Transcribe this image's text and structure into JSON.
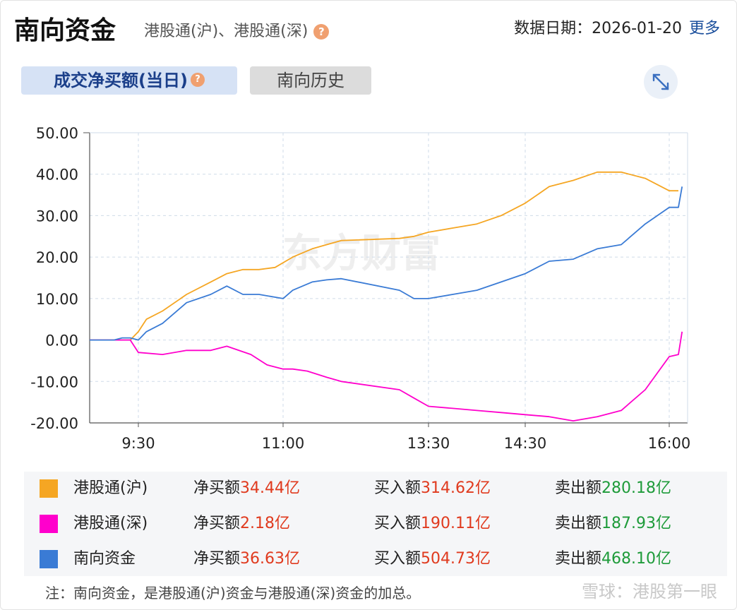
{
  "header": {
    "title": "南向资金",
    "subtitle": "港股通(沪)、港股通(深)",
    "help_icon": "question-mark-icon",
    "date_label": "数据日期：2026-01-20",
    "more_link": "更多"
  },
  "tabs": [
    {
      "label": "成交净买额(当日)",
      "active": true
    },
    {
      "label": "南向历史",
      "active": false
    }
  ],
  "expand_icon": "expand-arrows-icon",
  "chart_data": {
    "type": "line",
    "watermark": "东方财富",
    "ylim": [
      -20,
      50
    ],
    "yticks": [
      "50.00",
      "40.00",
      "30.00",
      "20.00",
      "10.00",
      "0.00",
      "-10.00",
      "-20.00"
    ],
    "xticks": [
      "9:30",
      "11:00",
      "13:30",
      "14:30",
      "16:00"
    ],
    "series": [
      {
        "name": "港股通(沪)",
        "color": "#f5a623",
        "points": [
          [
            "9:00",
            0
          ],
          [
            "9:25",
            0
          ],
          [
            "9:30",
            2
          ],
          [
            "9:35",
            5
          ],
          [
            "9:45",
            7
          ],
          [
            "10:00",
            11
          ],
          [
            "10:15",
            14
          ],
          [
            "10:25",
            16
          ],
          [
            "10:35",
            17
          ],
          [
            "10:45",
            17
          ],
          [
            "10:55",
            17.5
          ],
          [
            "11:10",
            20
          ],
          [
            "11:30",
            22
          ],
          [
            "11:45",
            23
          ],
          [
            "12:00",
            24
          ],
          [
            "13:00",
            24.5
          ],
          [
            "13:15",
            25
          ],
          [
            "13:30",
            26
          ],
          [
            "13:45",
            27
          ],
          [
            "14:00",
            28
          ],
          [
            "14:15",
            30
          ],
          [
            "14:30",
            33
          ],
          [
            "14:45",
            37
          ],
          [
            "15:00",
            38.5
          ],
          [
            "15:15",
            40.5
          ],
          [
            "15:30",
            40.5
          ],
          [
            "15:45",
            39
          ],
          [
            "16:00",
            36
          ],
          [
            "16:05",
            36
          ]
        ]
      },
      {
        "name": "港股通(深)",
        "color": "#ff00cc",
        "points": [
          [
            "9:00",
            0
          ],
          [
            "9:25",
            0
          ],
          [
            "9:30",
            -3
          ],
          [
            "9:45",
            -3.5
          ],
          [
            "10:00",
            -2.5
          ],
          [
            "10:15",
            -2.5
          ],
          [
            "10:25",
            -1.5
          ],
          [
            "10:40",
            -3.5
          ],
          [
            "10:50",
            -6
          ],
          [
            "11:00",
            -7
          ],
          [
            "11:10",
            -7
          ],
          [
            "11:25",
            -7.5
          ],
          [
            "11:45",
            -9
          ],
          [
            "12:00",
            -10
          ],
          [
            "13:00",
            -12
          ],
          [
            "13:15",
            -14
          ],
          [
            "13:30",
            -16
          ],
          [
            "13:45",
            -16.5
          ],
          [
            "14:00",
            -17
          ],
          [
            "14:15",
            -17.5
          ],
          [
            "14:30",
            -18
          ],
          [
            "14:45",
            -18.5
          ],
          [
            "15:00",
            -19.5
          ],
          [
            "15:15",
            -18.5
          ],
          [
            "15:30",
            -17
          ],
          [
            "15:45",
            -12
          ],
          [
            "16:00",
            -4
          ],
          [
            "16:05",
            -3.5
          ],
          [
            "16:07",
            2
          ]
        ]
      },
      {
        "name": "南向资金",
        "color": "#3a7bd5",
        "points": [
          [
            "9:00",
            0
          ],
          [
            "9:15",
            0
          ],
          [
            "9:20",
            0.5
          ],
          [
            "9:25",
            0.5
          ],
          [
            "9:30",
            0
          ],
          [
            "9:35",
            2
          ],
          [
            "9:45",
            4
          ],
          [
            "10:00",
            9
          ],
          [
            "10:15",
            11
          ],
          [
            "10:25",
            13
          ],
          [
            "10:35",
            11
          ],
          [
            "10:45",
            11
          ],
          [
            "11:00",
            10
          ],
          [
            "11:10",
            12
          ],
          [
            "11:30",
            14
          ],
          [
            "11:45",
            14.5
          ],
          [
            "12:00",
            14.8
          ],
          [
            "13:00",
            12
          ],
          [
            "13:15",
            10
          ],
          [
            "13:30",
            10
          ],
          [
            "13:45",
            11
          ],
          [
            "14:00",
            12
          ],
          [
            "14:15",
            14
          ],
          [
            "14:30",
            16
          ],
          [
            "14:45",
            19
          ],
          [
            "15:00",
            19.5
          ],
          [
            "15:15",
            22
          ],
          [
            "15:30",
            23
          ],
          [
            "15:45",
            28
          ],
          [
            "16:00",
            32
          ],
          [
            "16:05",
            32
          ],
          [
            "16:07",
            37
          ]
        ]
      }
    ]
  },
  "legend": [
    {
      "name": "港股通(沪)",
      "color": "#f5a623",
      "net_label": "净买额",
      "net": "34.44亿",
      "buy_label": "买入额",
      "buy": "314.62亿",
      "sell_label": "卖出额",
      "sell": "280.18亿"
    },
    {
      "name": "港股通(深)",
      "color": "#ff00cc",
      "net_label": "净买额",
      "net": "2.18亿",
      "buy_label": "买入额",
      "buy": "190.11亿",
      "sell_label": "卖出额",
      "sell": "187.93亿"
    },
    {
      "name": "南向资金",
      "color": "#3a7bd5",
      "net_label": "净买额",
      "net": "36.63亿",
      "buy_label": "买入额",
      "buy": "504.73亿",
      "sell_label": "卖出额",
      "sell": "468.10亿"
    }
  ],
  "note": "注：南向资金，是港股通(沪)资金与港股通(深)资金的加总。",
  "footer_watermark": "雪球：港股第一眼"
}
